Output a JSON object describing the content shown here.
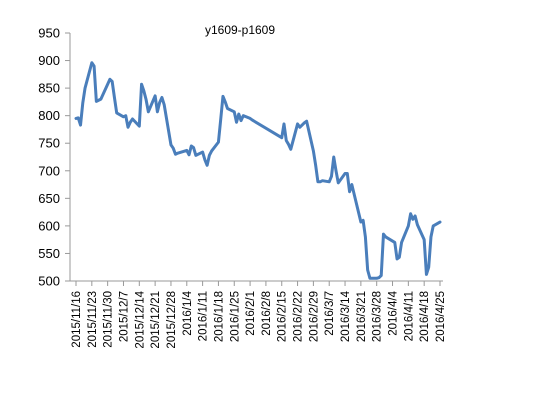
{
  "chart_data": {
    "type": "line",
    "title": "y1609-p1609",
    "xlabel": "",
    "ylabel": "",
    "ylim": [
      500,
      950
    ],
    "y_ticks": [
      "950",
      "900",
      "850",
      "800",
      "750",
      "700",
      "650",
      "600",
      "550",
      "500"
    ],
    "x_tick_labels": [
      "2015/11/16",
      "2015/11/23",
      "2015/11/30",
      "2015/12/7",
      "2015/12/14",
      "2015/12/21",
      "2015/12/28",
      "2016/1/4",
      "2016/1/11",
      "2016/1/18",
      "2016/1/25",
      "2016/2/1",
      "2016/2/8",
      "2016/2/15",
      "2016/2/22",
      "2016/2/29",
      "2016/3/7",
      "2016/3/14",
      "2016/3/21",
      "2016/3/28",
      "2016/4/4",
      "2016/4/11",
      "2016/4/18",
      "2016/4/25"
    ],
    "grid": false,
    "legend": "none",
    "line_color": "#4a7ebb",
    "series": [
      {
        "x": [
          "2015-11-16",
          "2015-11-17",
          "2015-11-18",
          "2015-11-19",
          "2015-11-20",
          "2015-11-23",
          "2015-11-24",
          "2015-11-25",
          "2015-11-26",
          "2015-11-27",
          "2015-11-30",
          "2015-12-01",
          "2015-12-02",
          "2015-12-03",
          "2015-12-04",
          "2015-12-07",
          "2015-12-08",
          "2015-12-09",
          "2015-12-10",
          "2015-12-11",
          "2015-12-14",
          "2015-12-15",
          "2015-12-16",
          "2015-12-17",
          "2015-12-18",
          "2015-12-21",
          "2015-12-22",
          "2015-12-23",
          "2015-12-24",
          "2015-12-25",
          "2015-12-28",
          "2015-12-29",
          "2015-12-30",
          "2015-12-31",
          "2016-01-04",
          "2016-01-05",
          "2016-01-06",
          "2016-01-07",
          "2016-01-08",
          "2016-01-11",
          "2016-01-12",
          "2016-01-13",
          "2016-01-14",
          "2016-01-15",
          "2016-01-18",
          "2016-01-19",
          "2016-01-20",
          "2016-01-21",
          "2016-01-22",
          "2016-01-25",
          "2016-01-26",
          "2016-01-27",
          "2016-01-28",
          "2016-01-29",
          "2016-02-01",
          "2016-02-02",
          "2016-02-15",
          "2016-02-16",
          "2016-02-17",
          "2016-02-18",
          "2016-02-19",
          "2016-02-22",
          "2016-02-23",
          "2016-02-24",
          "2016-02-25",
          "2016-02-26",
          "2016-02-29",
          "2016-03-01",
          "2016-03-02",
          "2016-03-03",
          "2016-03-04",
          "2016-03-07",
          "2016-03-08",
          "2016-03-09",
          "2016-03-10",
          "2016-03-11",
          "2016-03-14",
          "2016-03-15",
          "2016-03-16",
          "2016-03-17",
          "2016-03-18",
          "2016-03-21",
          "2016-03-22",
          "2016-03-23",
          "2016-03-24",
          "2016-03-25",
          "2016-03-28",
          "2016-03-29",
          "2016-03-30",
          "2016-03-31",
          "2016-04-01",
          "2016-04-05",
          "2016-04-06",
          "2016-04-07",
          "2016-04-08",
          "2016-04-11",
          "2016-04-12",
          "2016-04-13",
          "2016-04-14",
          "2016-04-15",
          "2016-04-18",
          "2016-04-19",
          "2016-04-20",
          "2016-04-21",
          "2016-04-22",
          "2016-04-25"
        ],
        "values": [
          795,
          796,
          783,
          823,
          850,
          896,
          890,
          826,
          828,
          830,
          857,
          866,
          862,
          833,
          805,
          798,
          800,
          779,
          788,
          794,
          781,
          857,
          845,
          829,
          807,
          836,
          807,
          824,
          833,
          820,
          747,
          741,
          730,
          732,
          737,
          729,
          745,
          742,
          728,
          734,
          720,
          710,
          728,
          736,
          752,
          793,
          835,
          825,
          813,
          807,
          788,
          803,
          791,
          800,
          795,
          792,
          760,
          785,
          755,
          748,
          739,
          785,
          779,
          783,
          787,
          790,
          736,
          710,
          680,
          680,
          682,
          680,
          690,
          725,
          700,
          678,
          695,
          695,
          662,
          675,
          658,
          607,
          610,
          580,
          520,
          505,
          505,
          506,
          510,
          585,
          580,
          570,
          540,
          543,
          570,
          600,
          622,
          612,
          618,
          602,
          575,
          512,
          525,
          580,
          600,
          607
        ]
      }
    ]
  }
}
